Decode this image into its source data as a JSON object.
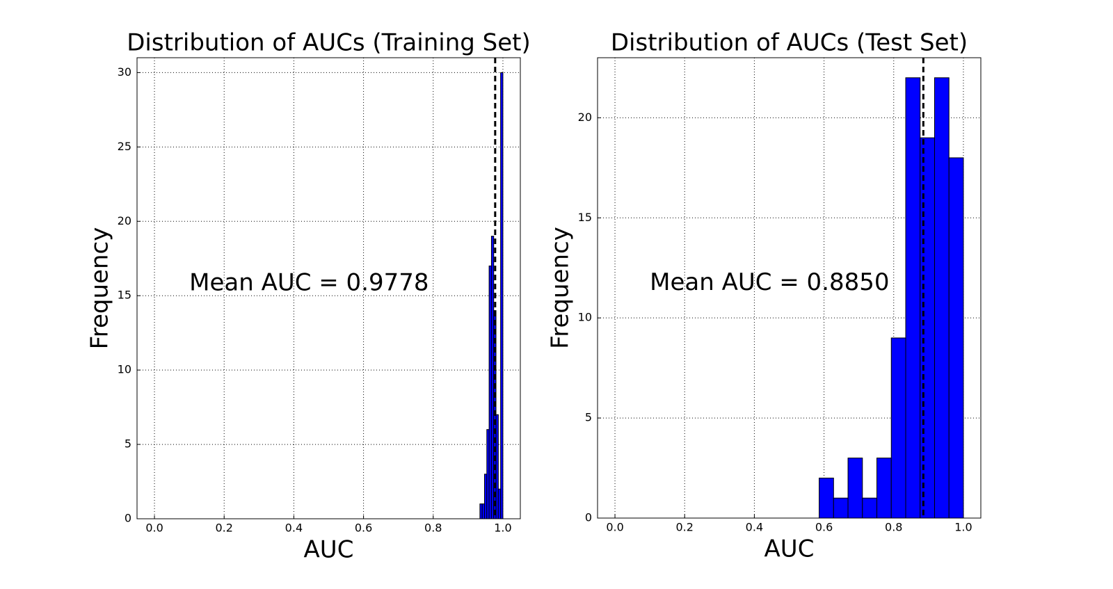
{
  "chart_data": [
    {
      "type": "histogram",
      "title": "Distribution of AUCs (Training Set)",
      "x_label": "AUC",
      "y_label": "Frequency",
      "bins": [
        0.934,
        0.9406,
        0.9472,
        0.9538,
        0.9604,
        0.967,
        0.9736,
        0.9802,
        0.9868,
        0.9934,
        1.0
      ],
      "values": [
        1,
        1,
        3,
        6,
        17,
        19,
        14,
        7,
        2,
        30
      ],
      "color": "#0000ff",
      "mean": 0.9778,
      "annotation": "Mean AUC = 0.9778",
      "xlim": [
        -0.05,
        1.05
      ],
      "xticks": [
        {
          "value": 0,
          "label": "0.0"
        },
        0.2,
        0.4,
        0.6,
        0.8,
        {
          "value": 1,
          "label": "1.0"
        }
      ],
      "ylim": [
        0,
        31
      ],
      "yticks": [
        0,
        5,
        10,
        15,
        20,
        25,
        30
      ],
      "grid": true
    },
    {
      "type": "histogram",
      "title": "Distribution of AUCs (Test Set)",
      "x_label": "AUC",
      "y_label": "Frequency",
      "bins": [
        0.586,
        0.6274,
        0.6688,
        0.7102,
        0.7516,
        0.793,
        0.8344,
        0.8758,
        0.9172,
        0.9586,
        1.0
      ],
      "values": [
        2,
        1,
        3,
        1,
        3,
        9,
        22,
        19,
        22,
        18
      ],
      "color": "#0000ff",
      "mean": 0.885,
      "annotation": "Mean AUC = 0.8850",
      "xlim": [
        -0.05,
        1.05
      ],
      "xticks": [
        {
          "value": 0,
          "label": "0.0"
        },
        0.2,
        0.4,
        0.6,
        0.8,
        {
          "value": 1,
          "label": "1.0"
        }
      ],
      "ylim": [
        0,
        23
      ],
      "yticks": [
        0,
        5,
        10,
        15,
        20
      ],
      "grid": true
    }
  ]
}
